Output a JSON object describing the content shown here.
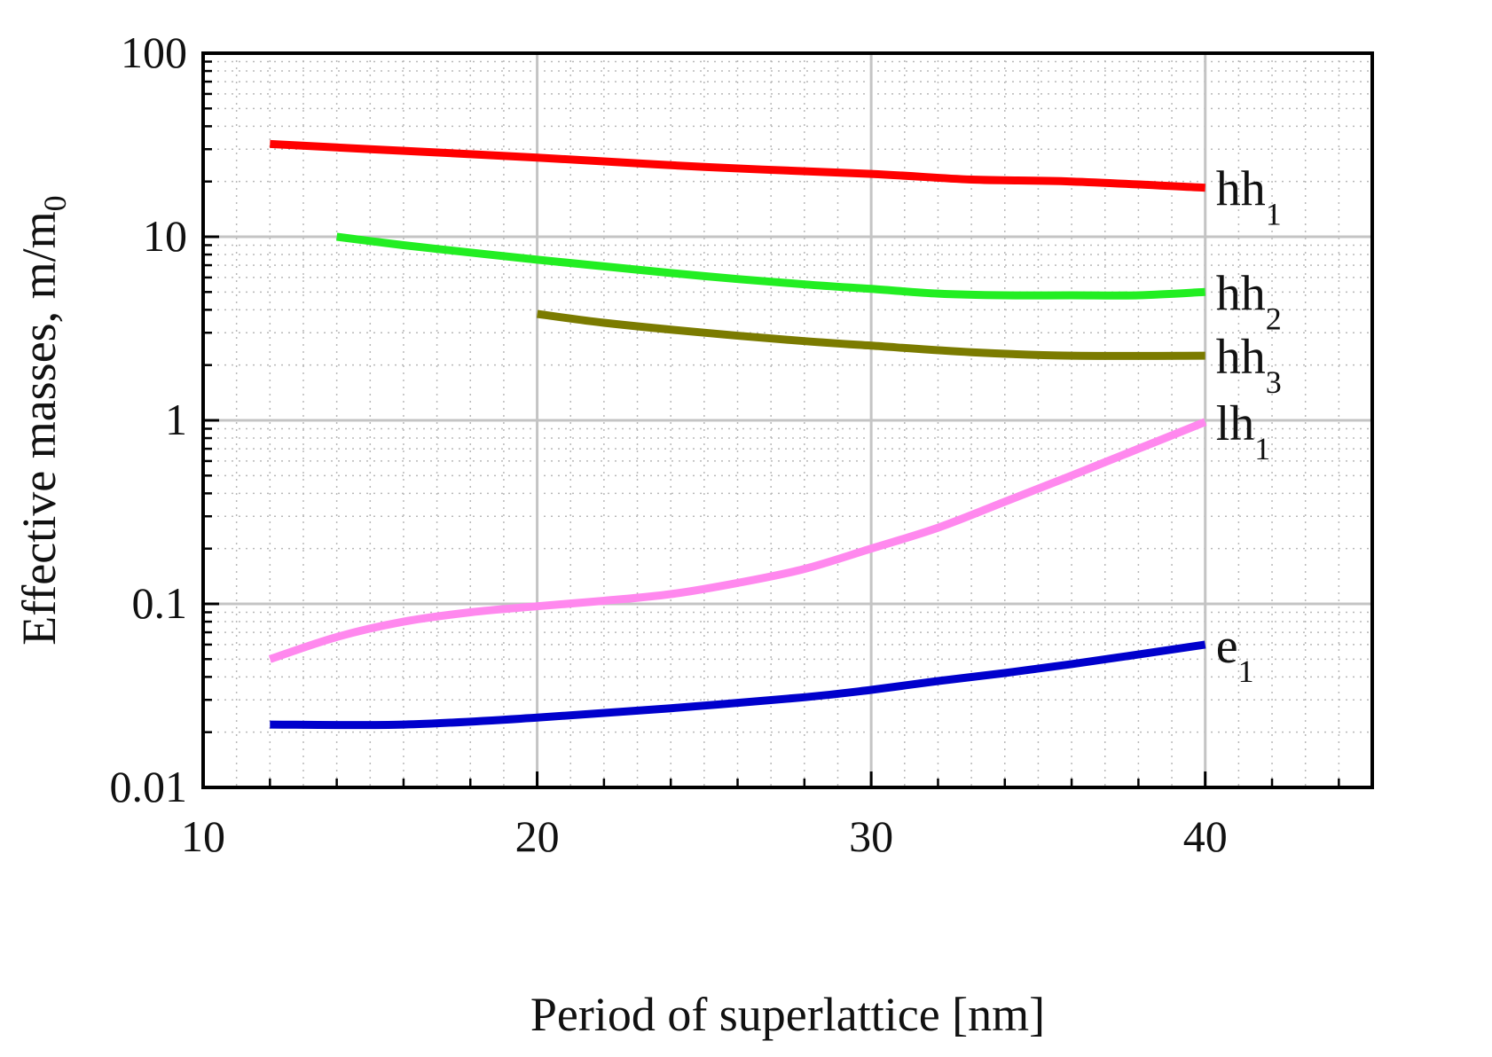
{
  "chart_data": {
    "type": "line",
    "title": "",
    "xlabel": "Period of superlattice [nm]",
    "ylabel": {
      "main": "Effective masses, m/m",
      "sub": "0"
    },
    "xlim": [
      10,
      45
    ],
    "ylim": [
      0.01,
      100
    ],
    "yscale": "log",
    "grid": true,
    "x_ticks": [
      10,
      20,
      30,
      40
    ],
    "x_tick_labels": [
      "10",
      "20",
      "30",
      "40"
    ],
    "y_ticks": [
      0.01,
      0.1,
      1,
      10,
      100
    ],
    "y_tick_labels": [
      "0.01",
      "0.1",
      "1",
      "10",
      "100"
    ],
    "series": [
      {
        "name": "hh1",
        "label": "hh",
        "sub": "1",
        "color": "#ff0000",
        "x": [
          12,
          15,
          20,
          25,
          30,
          33,
          36,
          40
        ],
        "y": [
          32,
          30,
          27,
          24,
          22,
          20.5,
          20,
          18.5
        ]
      },
      {
        "name": "hh2",
        "label": "hh",
        "sub": "2",
        "color": "#22ee22",
        "x": [
          14,
          16,
          18,
          20,
          22,
          25,
          28,
          30,
          32,
          34,
          36,
          38,
          40
        ],
        "y": [
          10,
          9,
          8.2,
          7.5,
          6.9,
          6.1,
          5.5,
          5.2,
          4.9,
          4.8,
          4.8,
          4.8,
          5.0
        ]
      },
      {
        "name": "hh3",
        "label": "hh",
        "sub": "3",
        "color": "#7b7b00",
        "x": [
          20,
          22,
          25,
          28,
          30,
          33,
          36,
          40
        ],
        "y": [
          3.8,
          3.4,
          3.0,
          2.7,
          2.55,
          2.35,
          2.25,
          2.25
        ]
      },
      {
        "name": "lh1",
        "label": "lh",
        "sub": "1",
        "color": "#ff88ee",
        "x": [
          12,
          14,
          16,
          18,
          20,
          22,
          24,
          26,
          28,
          30,
          32,
          34,
          36,
          38,
          40
        ],
        "y": [
          0.05,
          0.066,
          0.08,
          0.09,
          0.097,
          0.104,
          0.113,
          0.13,
          0.155,
          0.2,
          0.26,
          0.36,
          0.5,
          0.7,
          0.98
        ]
      },
      {
        "name": "e1",
        "label": "e",
        "sub": "1",
        "color": "#0000cc",
        "x": [
          12,
          16,
          20,
          24,
          28,
          30,
          32,
          34,
          36,
          38,
          40
        ],
        "y": [
          0.022,
          0.022,
          0.024,
          0.027,
          0.031,
          0.034,
          0.038,
          0.042,
          0.047,
          0.053,
          0.06
        ]
      }
    ]
  }
}
